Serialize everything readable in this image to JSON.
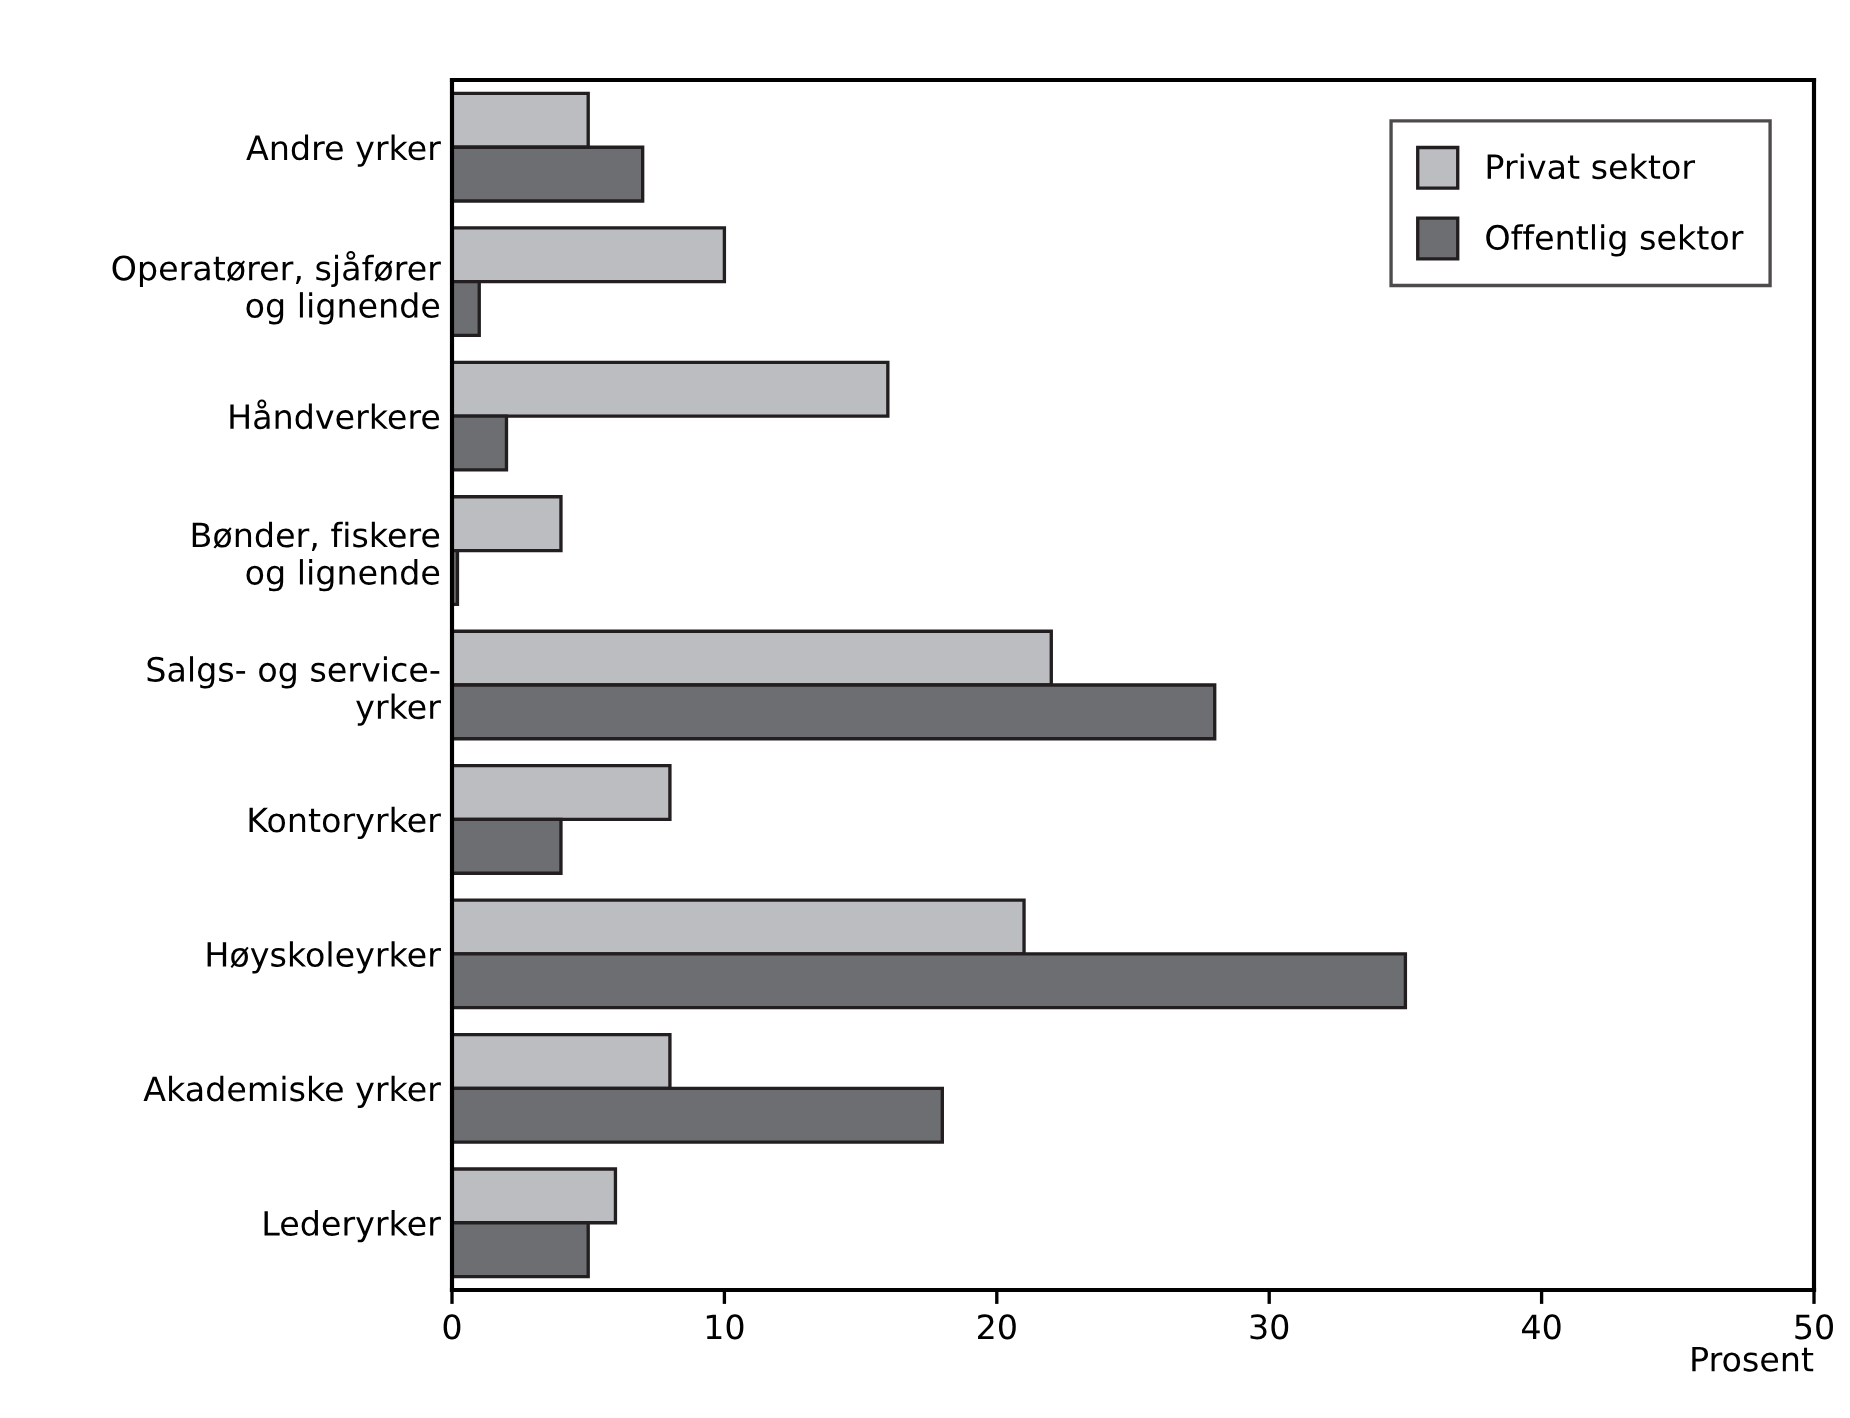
{
  "chart_data": {
    "type": "bar",
    "orientation": "horizontal",
    "xlabel": "Prosent",
    "categories": [
      "Andre yrker",
      "Operatører, sjåfører\nog lignende",
      "Håndverkere",
      "Bønder, fiskere\nog lignende",
      "Salgs- og service-\nyrker",
      "Kontoryrker",
      "Høyskoleyrker",
      "Akademiske yrker",
      "Lederyrker"
    ],
    "series": [
      {
        "name": "Privat sektor",
        "color": "#bcbdc0",
        "values": [
          5,
          10,
          16,
          4,
          22,
          8,
          21,
          8,
          6
        ]
      },
      {
        "name": "Offentlig sektor",
        "color": "#6d6e71",
        "values": [
          7,
          1,
          2,
          0.2,
          28,
          4,
          35,
          18,
          5
        ]
      }
    ],
    "xlim": [
      0,
      50
    ],
    "xticks": [
      0,
      10,
      20,
      30,
      40,
      50
    ],
    "grid": false,
    "legend": "top right"
  }
}
